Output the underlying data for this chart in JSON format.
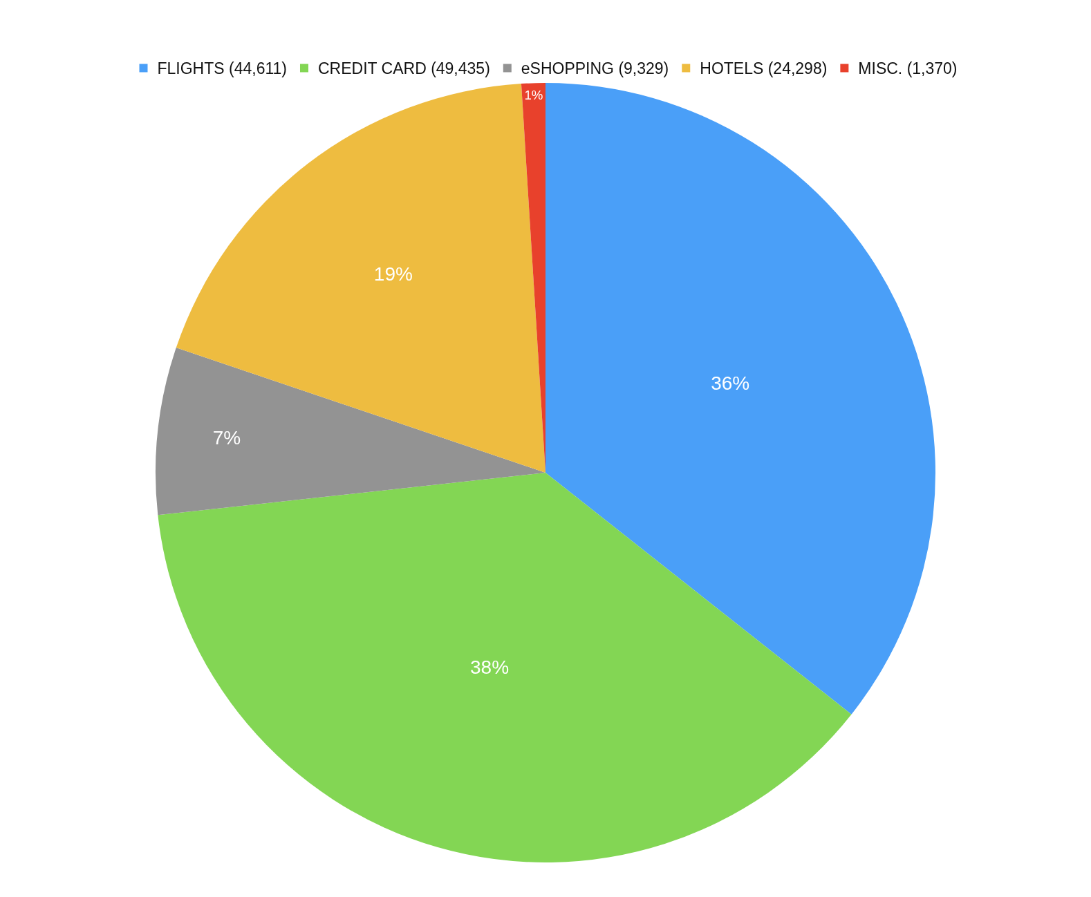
{
  "chart_data": {
    "type": "pie",
    "categories": [
      "FLIGHTS (44,611)",
      "CREDIT CARD (49,435)",
      "eSHOPPING (9,329)",
      "HOTELS (24,298)",
      "MISC. (1,370)"
    ],
    "values": [
      36,
      38,
      7,
      19,
      1
    ],
    "colors": [
      "#4a9ff8",
      "#83d654",
      "#939393",
      "#eebc40",
      "#e8412c"
    ],
    "value_labels": [
      "36%",
      "38%",
      "7%",
      "19%",
      "1%"
    ],
    "legend": "top"
  }
}
